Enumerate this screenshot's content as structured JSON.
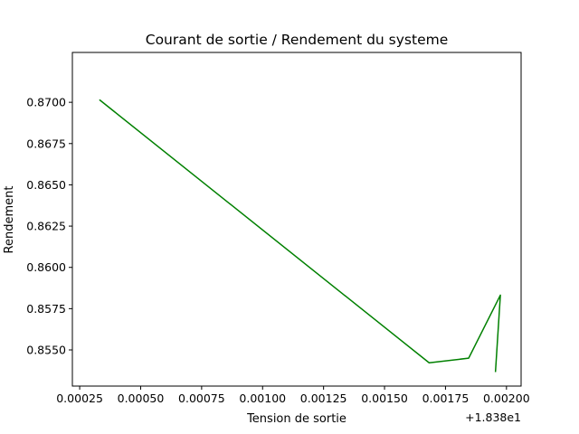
{
  "chart_data": {
    "type": "line",
    "title": "Courant de sortie / Rendement du systeme",
    "xlabel": "Tension de sortie",
    "ylabel": "Rendement",
    "x_offset_label": "+1.838e1",
    "x": [
      18.380333,
      18.381683,
      18.381845,
      18.381975,
      18.381955
    ],
    "y": [
      0.87013,
      0.85422,
      0.8545,
      0.85832,
      0.8537
    ],
    "line_color": "#008000",
    "xlim": [
      18.38022,
      18.38206
    ],
    "ylim": [
      0.85281,
      0.87302
    ],
    "x_ticks": [
      {
        "value": 18.38025,
        "label": "0.00025"
      },
      {
        "value": 18.3805,
        "label": "0.00050"
      },
      {
        "value": 18.38075,
        "label": "0.00075"
      },
      {
        "value": 18.381,
        "label": "0.00100"
      },
      {
        "value": 18.38125,
        "label": "0.00125"
      },
      {
        "value": 18.3815,
        "label": "0.00150"
      },
      {
        "value": 18.38175,
        "label": "0.00175"
      },
      {
        "value": 18.382,
        "label": "0.00200"
      }
    ],
    "y_ticks": [
      {
        "value": 0.855,
        "label": "0.8550"
      },
      {
        "value": 0.8575,
        "label": "0.8575"
      },
      {
        "value": 0.86,
        "label": "0.8600"
      },
      {
        "value": 0.8625,
        "label": "0.8625"
      },
      {
        "value": 0.865,
        "label": "0.8650"
      },
      {
        "value": 0.8675,
        "label": "0.8675"
      },
      {
        "value": 0.87,
        "label": "0.8700"
      }
    ],
    "grid": false,
    "legend": "none"
  }
}
